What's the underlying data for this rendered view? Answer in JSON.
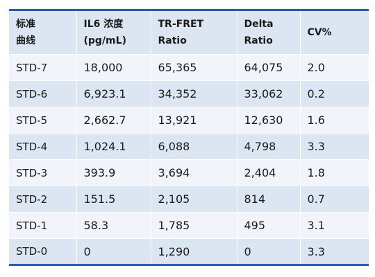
{
  "table": {
    "headers": [
      [
        "标准",
        "曲线"
      ],
      [
        "IL6 浓度",
        "(pg/mL)"
      ],
      [
        "TR-FRET",
        "Ratio"
      ],
      [
        "Delta",
        "Ratio"
      ],
      [
        "CV%",
        ""
      ]
    ],
    "rows": [
      [
        "STD-7",
        "18,000",
        "65,365",
        "64,075",
        "2.0"
      ],
      [
        "STD-6",
        "6,923.1",
        "34,352",
        "33,062",
        "0.2"
      ],
      [
        "STD-5",
        "2,662.7",
        "13,921",
        "12,630",
        "1.6"
      ],
      [
        "STD-4",
        "1,024.1",
        "6,088",
        "4,798",
        "3.3"
      ],
      [
        "STD-3",
        "393.9",
        "3,694",
        "2,404",
        "1.8"
      ],
      [
        "STD-2",
        "151.5",
        "2,105",
        "814",
        "0.7"
      ],
      [
        "STD-1",
        "58.3",
        "1,785",
        "495",
        "3.1"
      ],
      [
        "STD-0",
        "0",
        "1,290",
        "0",
        "3.3"
      ]
    ]
  },
  "colors": {
    "rule": "#2a5ca8",
    "header_bg": "#dce6f3",
    "row_light": "#f1f5fb",
    "row_dark": "#dce6f3"
  }
}
